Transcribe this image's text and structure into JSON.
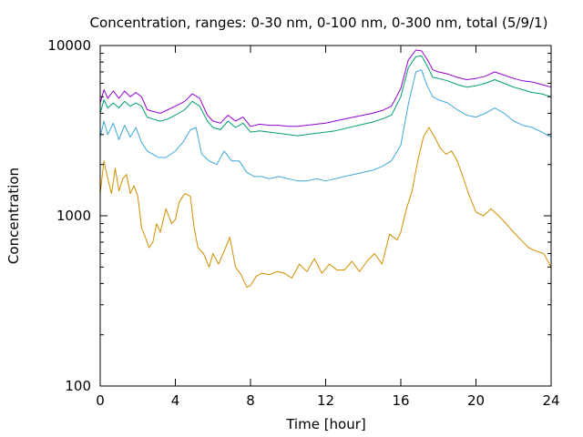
{
  "chart_data": {
    "type": "line",
    "title": "Concentration, ranges: 0-30 nm, 0-100 nm, 0-300 nm, total (5/9/1)",
    "xlabel": "Time [hour]",
    "ylabel": "Concentration",
    "xlim": [
      0,
      24
    ],
    "ylim": [
      100,
      10000
    ],
    "yscale": "log",
    "grid": false,
    "legend": "none",
    "xticks": [
      0,
      4,
      8,
      12,
      16,
      20,
      24
    ],
    "xtick_labels": [
      "0",
      "4",
      "8",
      "12",
      "16",
      "20",
      "24"
    ],
    "yticks": [
      100,
      1000,
      10000
    ],
    "ytick_labels": [
      "100",
      "1000",
      "10000"
    ],
    "series": [
      {
        "color": "#d18f00",
        "x": [
          0,
          0.2,
          0.4,
          0.6,
          0.8,
          1.0,
          1.2,
          1.4,
          1.6,
          1.8,
          2.0,
          2.2,
          2.4,
          2.6,
          2.8,
          3.0,
          3.2,
          3.5,
          3.8,
          4.0,
          4.2,
          4.5,
          4.8,
          5.0,
          5.2,
          5.5,
          5.8,
          6.0,
          6.3,
          6.6,
          6.9,
          7.2,
          7.5,
          7.8,
          8.0,
          8.3,
          8.6,
          9.0,
          9.4,
          9.8,
          10.2,
          10.6,
          11.0,
          11.4,
          11.8,
          12.2,
          12.6,
          13.0,
          13.4,
          13.8,
          14.2,
          14.6,
          15.0,
          15.4,
          15.8,
          16.0,
          16.3,
          16.6,
          16.9,
          17.2,
          17.5,
          17.8,
          18.1,
          18.4,
          18.7,
          19.0,
          19.3,
          19.6,
          20.0,
          20.4,
          20.8,
          21.2,
          21.6,
          22.0,
          22.4,
          22.8,
          23.2,
          23.6,
          24.0
        ],
        "values": [
          1350,
          2100,
          1650,
          1350,
          1900,
          1400,
          1650,
          1750,
          1350,
          1500,
          1300,
          850,
          750,
          650,
          700,
          900,
          800,
          1100,
          900,
          950,
          1200,
          1350,
          1300,
          850,
          650,
          600,
          500,
          600,
          520,
          620,
          750,
          500,
          450,
          380,
          390,
          440,
          460,
          450,
          470,
          460,
          430,
          520,
          470,
          560,
          460,
          520,
          480,
          480,
          540,
          470,
          540,
          600,
          520,
          780,
          720,
          800,
          1100,
          1400,
          2100,
          2900,
          3300,
          2900,
          2500,
          2300,
          2400,
          2100,
          1700,
          1350,
          1050,
          1000,
          1100,
          1000,
          900,
          800,
          720,
          650,
          620,
          600,
          500
        ]
      },
      {
        "color": "#3ba8d8",
        "x": [
          0,
          0.2,
          0.4,
          0.7,
          1.0,
          1.3,
          1.6,
          1.9,
          2.2,
          2.5,
          2.8,
          3.1,
          3.5,
          4.0,
          4.4,
          4.8,
          5.1,
          5.4,
          5.8,
          6.2,
          6.6,
          7.0,
          7.4,
          7.8,
          8.2,
          8.6,
          9.0,
          9.5,
          10.0,
          10.5,
          11.0,
          11.5,
          12.0,
          12.5,
          13.0,
          13.5,
          14.0,
          14.5,
          15.0,
          15.5,
          16.0,
          16.4,
          16.8,
          17.1,
          17.4,
          17.7,
          18.0,
          18.5,
          19.0,
          19.5,
          20.0,
          20.5,
          21.0,
          21.5,
          22.0,
          22.5,
          23.0,
          23.5,
          24.0
        ],
        "values": [
          2900,
          3600,
          3000,
          3500,
          2800,
          3400,
          2900,
          3300,
          2700,
          2400,
          2300,
          2200,
          2200,
          2400,
          2700,
          3200,
          3300,
          2300,
          2100,
          2000,
          2400,
          2100,
          2100,
          1800,
          1700,
          1700,
          1650,
          1700,
          1650,
          1600,
          1600,
          1650,
          1600,
          1650,
          1700,
          1750,
          1800,
          1850,
          1950,
          2100,
          2600,
          4500,
          7000,
          7200,
          5800,
          5000,
          4800,
          4600,
          4200,
          3900,
          3800,
          4000,
          4300,
          4000,
          3600,
          3400,
          3300,
          3100,
          2900
        ]
      },
      {
        "color": "#009e73",
        "x": [
          0,
          0.2,
          0.4,
          0.7,
          1.0,
          1.3,
          1.6,
          1.9,
          2.2,
          2.5,
          2.8,
          3.2,
          3.6,
          4.0,
          4.5,
          4.9,
          5.3,
          5.7,
          6.0,
          6.4,
          6.8,
          7.2,
          7.6,
          8.0,
          8.5,
          9.0,
          9.5,
          10.0,
          10.5,
          11.0,
          11.5,
          12.0,
          12.5,
          13.0,
          13.5,
          14.0,
          14.5,
          15.0,
          15.5,
          16.0,
          16.4,
          16.8,
          17.1,
          17.4,
          17.7,
          18.0,
          18.5,
          19.0,
          19.5,
          20.0,
          20.5,
          21.0,
          21.5,
          22.0,
          22.5,
          23.0,
          23.5,
          24.0
        ],
        "values": [
          4000,
          4800,
          4300,
          4600,
          4300,
          4700,
          4400,
          4600,
          4400,
          3800,
          3700,
          3600,
          3700,
          3900,
          4200,
          4700,
          4400,
          3600,
          3300,
          3200,
          3600,
          3300,
          3500,
          3100,
          3150,
          3100,
          3050,
          3000,
          2950,
          3000,
          3050,
          3100,
          3150,
          3250,
          3350,
          3450,
          3550,
          3700,
          3900,
          5000,
          7400,
          8600,
          8700,
          7600,
          6500,
          6400,
          6200,
          5900,
          5700,
          5800,
          6000,
          6300,
          6000,
          5700,
          5500,
          5300,
          5200,
          5000
        ]
      },
      {
        "color": "#9400d3",
        "x": [
          0,
          0.2,
          0.4,
          0.7,
          1.0,
          1.3,
          1.6,
          1.9,
          2.2,
          2.5,
          2.8,
          3.2,
          3.6,
          4.0,
          4.5,
          4.9,
          5.3,
          5.7,
          6.0,
          6.4,
          6.8,
          7.2,
          7.6,
          8.0,
          8.5,
          9.0,
          9.5,
          10.0,
          10.5,
          11.0,
          11.5,
          12.0,
          12.5,
          13.0,
          13.5,
          14.0,
          14.5,
          15.0,
          15.5,
          16.0,
          16.4,
          16.8,
          17.1,
          17.4,
          17.7,
          18.0,
          18.5,
          19.0,
          19.5,
          20.0,
          20.5,
          21.0,
          21.5,
          22.0,
          22.5,
          23.0,
          23.5,
          24.0
        ],
        "values": [
          4600,
          5500,
          4900,
          5400,
          4900,
          5400,
          5000,
          5300,
          5000,
          4200,
          4100,
          4000,
          4200,
          4400,
          4700,
          5200,
          4900,
          3900,
          3600,
          3500,
          3900,
          3600,
          3800,
          3350,
          3450,
          3400,
          3400,
          3350,
          3350,
          3400,
          3450,
          3500,
          3600,
          3700,
          3800,
          3900,
          4000,
          4150,
          4400,
          5600,
          8200,
          9400,
          9300,
          8300,
          7200,
          7000,
          6800,
          6500,
          6300,
          6400,
          6600,
          7000,
          6700,
          6400,
          6200,
          6100,
          5900,
          5700
        ]
      }
    ]
  }
}
